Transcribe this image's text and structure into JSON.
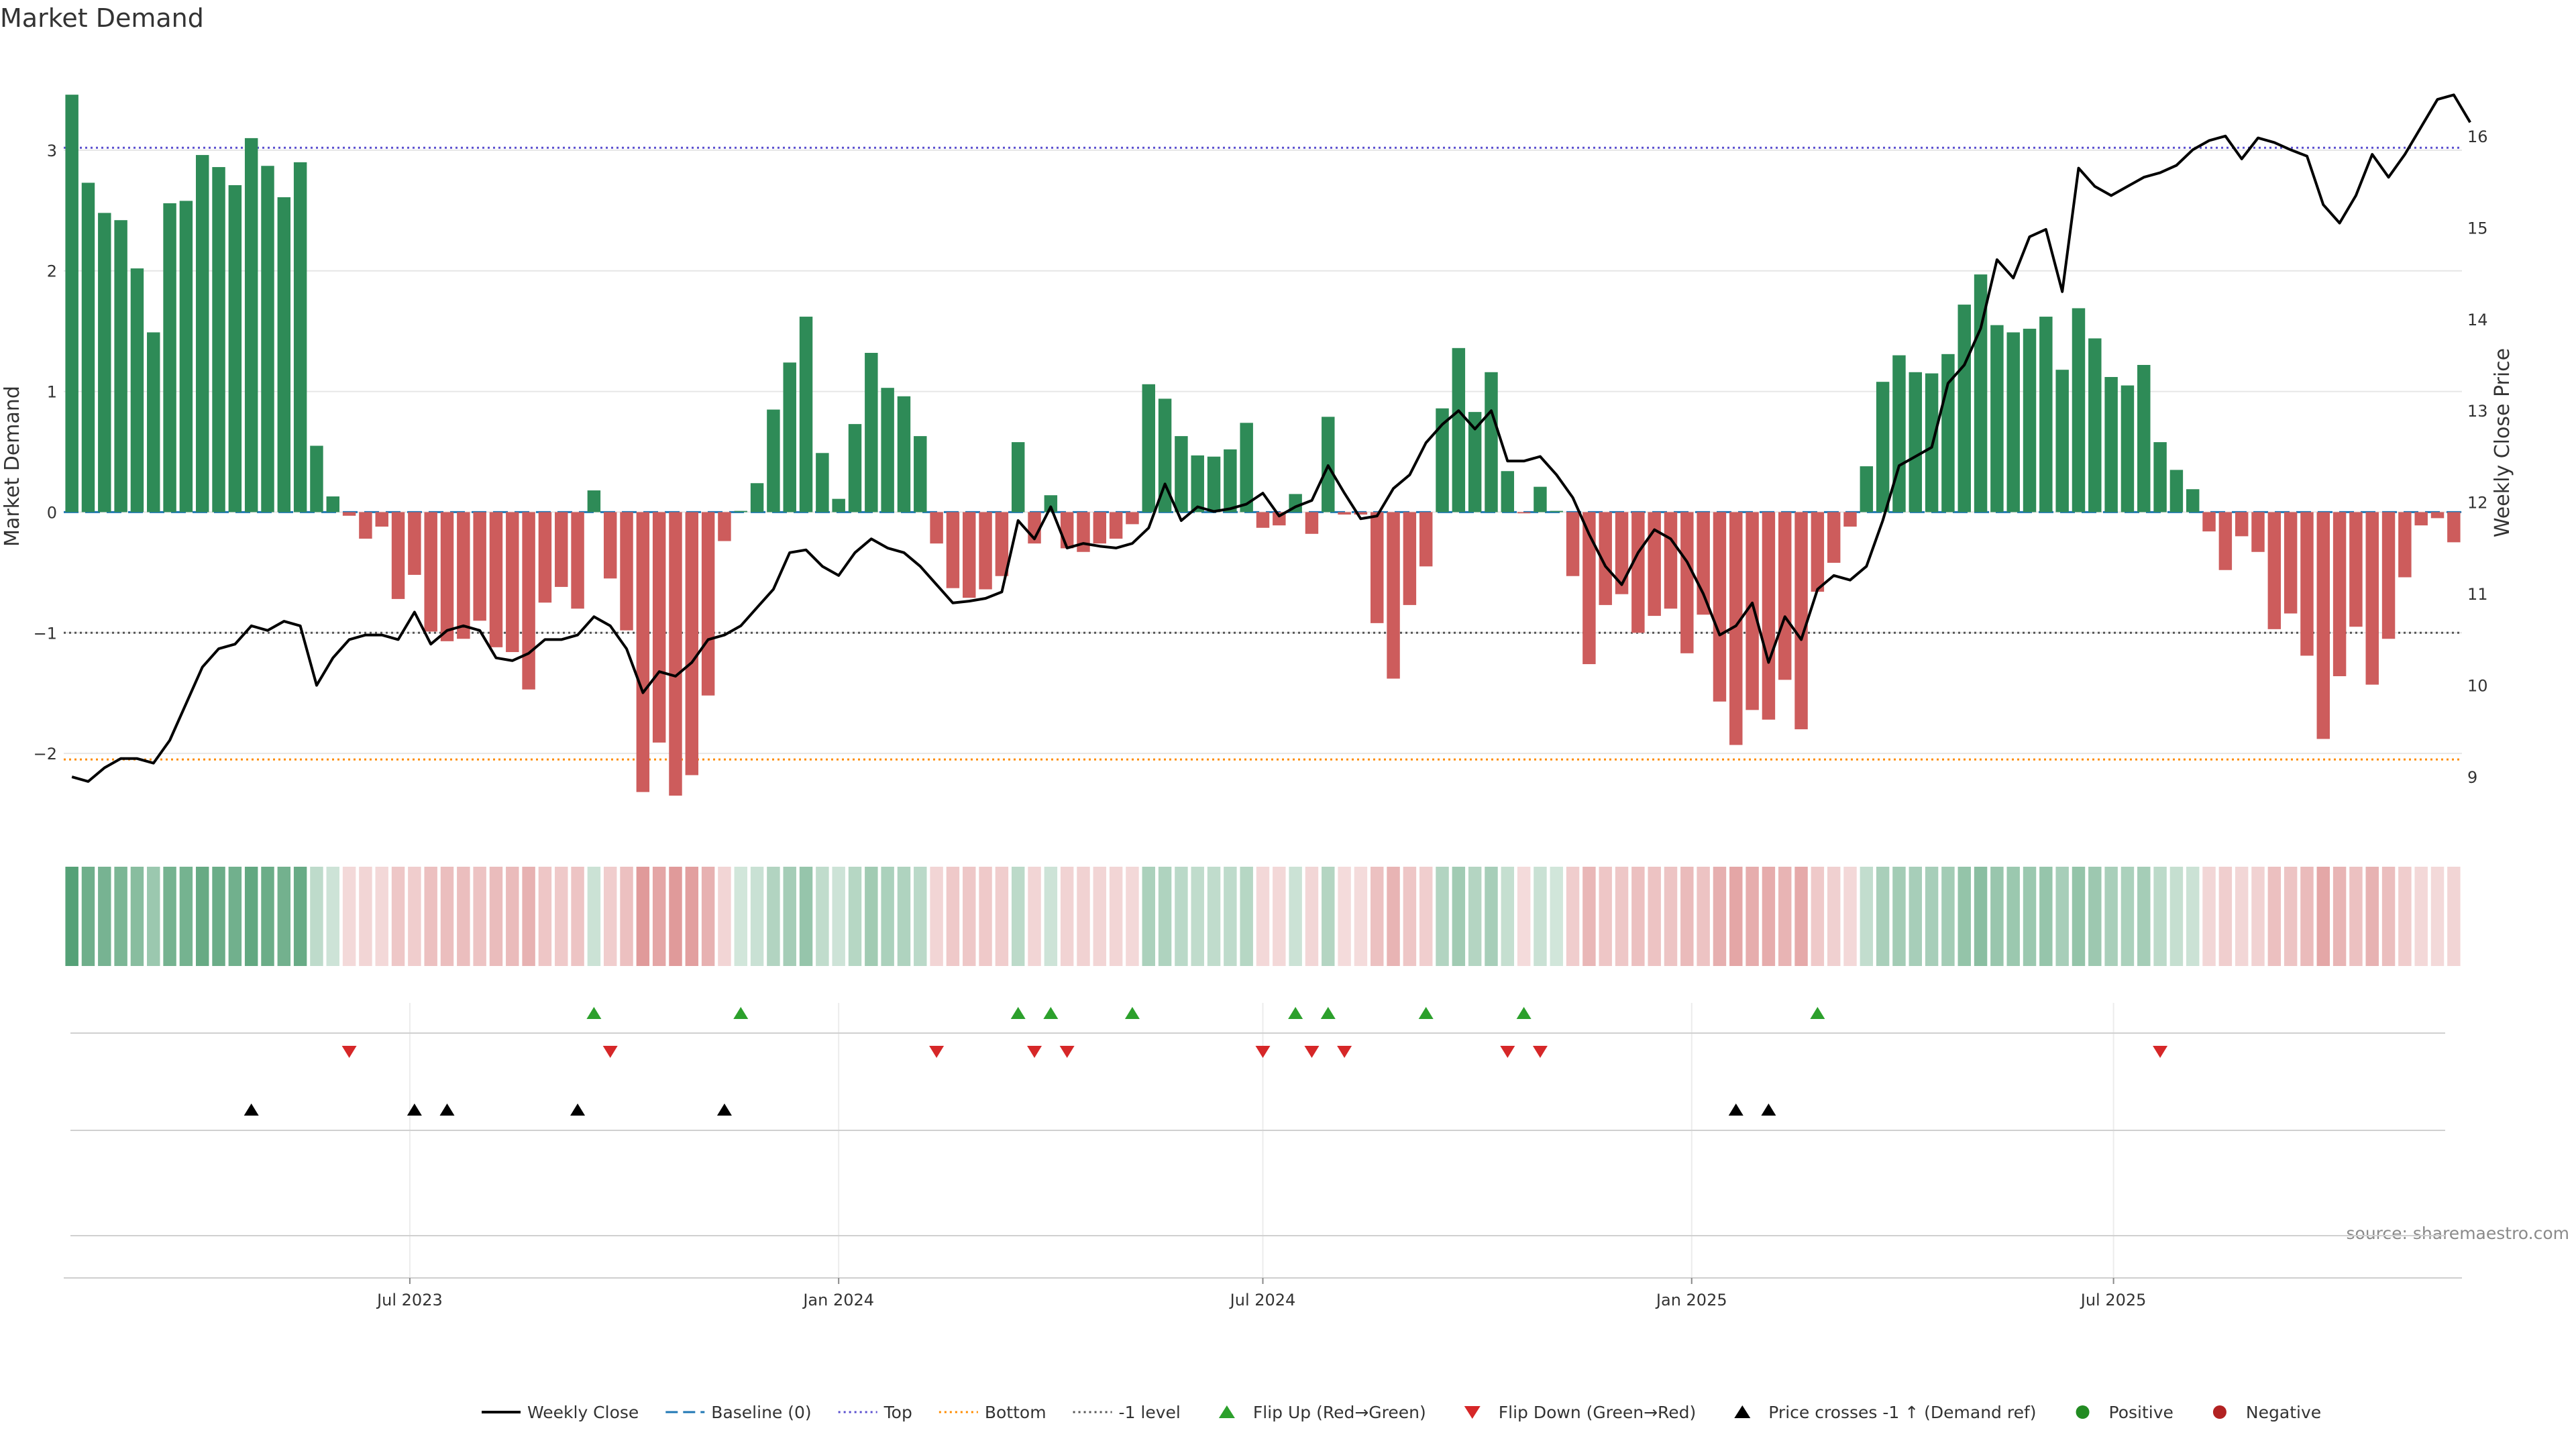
{
  "chart_data": {
    "type": "bar+line",
    "title": "Market Demand",
    "ylabel_left": "Market Demand",
    "ylabel_right": "Weekly Close Price",
    "source": "source: sharemaestro.com",
    "x_start": "2023-02-06",
    "x_interval_days": 7,
    "x_tick_labels": [
      {
        "label": "Jul 2023",
        "date": "2023-07-01"
      },
      {
        "label": "Jan 2024",
        "date": "2024-01-01"
      },
      {
        "label": "Jul 2024",
        "date": "2024-07-01"
      },
      {
        "label": "Jan 2025",
        "date": "2025-01-01"
      },
      {
        "label": "Jul 2025",
        "date": "2025-07-01"
      }
    ],
    "ylim_left": [
      -2.65,
      3.8
    ],
    "yticks_left": [
      -2,
      -1,
      0,
      1,
      2,
      3
    ],
    "ylim_right": [
      8.4,
      16.9
    ],
    "yticks_right": [
      9,
      10,
      11,
      12,
      13,
      14,
      15,
      16
    ],
    "reference_lines": {
      "top": 3.02,
      "bottom": -2.05,
      "minus_one": -1,
      "baseline": 0
    },
    "colors": {
      "positive": "#2e8b57",
      "negative": "#cd5c5c",
      "price": "#000000",
      "baseline": "#1f77b4",
      "top": "#5a4fcf",
      "bottom": "#ff8c00",
      "minus_one": "#555555",
      "flip_up": "#2ca02c",
      "flip_down": "#d62728",
      "cross": "#000000",
      "positive_dot": "#228b22",
      "negative_dot": "#b22222"
    },
    "demand": [
      3.46,
      2.73,
      2.48,
      2.42,
      2.02,
      1.49,
      2.56,
      2.58,
      2.96,
      2.86,
      2.71,
      3.1,
      2.87,
      2.61,
      2.9,
      0.55,
      0.13,
      -0.03,
      -0.22,
      -0.12,
      -0.72,
      -0.52,
      -0.99,
      -1.07,
      -1.05,
      -0.9,
      -1.12,
      -1.16,
      -1.47,
      -0.75,
      -0.62,
      -0.8,
      0.18,
      -0.55,
      -0.98,
      -2.32,
      -1.91,
      -2.35,
      -2.18,
      -1.52,
      -0.24,
      0.01,
      0.24,
      0.85,
      1.24,
      1.62,
      0.49,
      0.11,
      0.73,
      1.32,
      1.03,
      0.96,
      0.63,
      -0.26,
      -0.63,
      -0.71,
      -0.64,
      -0.53,
      0.58,
      -0.26,
      0.14,
      -0.3,
      -0.33,
      -0.26,
      -0.22,
      -0.1,
      1.06,
      0.94,
      0.63,
      0.47,
      0.46,
      0.52,
      0.74,
      -0.13,
      -0.11,
      0.15,
      -0.18,
      0.79,
      -0.02,
      -0.02,
      -0.92,
      -1.38,
      -0.77,
      -0.45,
      0.86,
      1.36,
      0.83,
      1.16,
      0.34,
      -0.01,
      0.21,
      0.01,
      -0.53,
      -1.26,
      -0.77,
      -0.68,
      -1.0,
      -0.86,
      -0.8,
      -1.17,
      -0.85,
      -1.57,
      -1.93,
      -1.64,
      -1.72,
      -1.39,
      -1.8,
      -0.66,
      -0.42,
      -0.12,
      0.38,
      1.08,
      1.3,
      1.16,
      1.15,
      1.31,
      1.72,
      1.97,
      1.55,
      1.49,
      1.52,
      1.62,
      1.18,
      1.69,
      1.44,
      1.12,
      1.05,
      1.22,
      0.58,
      0.35,
      0.19,
      -0.16,
      -0.48,
      -0.2,
      -0.33,
      -0.97,
      -0.84,
      -1.19,
      -1.88,
      -1.36,
      -0.95,
      -1.43,
      -1.05,
      -0.54,
      -0.11,
      -0.05,
      -0.25
    ],
    "price": [
      9.0,
      8.95,
      9.1,
      9.2,
      9.2,
      9.15,
      9.4,
      9.8,
      10.2,
      10.4,
      10.45,
      10.65,
      10.6,
      10.7,
      10.65,
      10.0,
      10.3,
      10.5,
      10.55,
      10.55,
      10.5,
      10.8,
      10.45,
      10.6,
      10.65,
      10.6,
      10.3,
      10.27,
      10.35,
      10.5,
      10.5,
      10.55,
      10.75,
      10.65,
      10.4,
      9.92,
      10.15,
      10.1,
      10.25,
      10.5,
      10.55,
      10.65,
      10.85,
      11.05,
      11.45,
      11.48,
      11.3,
      11.2,
      11.45,
      11.6,
      11.5,
      11.45,
      11.3,
      11.1,
      10.9,
      10.92,
      10.95,
      11.02,
      11.8,
      11.6,
      11.95,
      11.5,
      11.55,
      11.52,
      11.5,
      11.55,
      11.72,
      12.2,
      11.8,
      11.95,
      11.9,
      11.93,
      11.98,
      12.1,
      11.85,
      11.95,
      12.02,
      12.4,
      12.1,
      11.82,
      11.85,
      12.15,
      12.3,
      12.65,
      12.85,
      13.0,
      12.8,
      13.0,
      12.45,
      12.45,
      12.5,
      12.3,
      12.05,
      11.65,
      11.3,
      11.1,
      11.45,
      11.7,
      11.6,
      11.35,
      11.0,
      10.55,
      10.65,
      10.9,
      10.25,
      10.75,
      10.5,
      11.05,
      11.2,
      11.15,
      11.3,
      11.8,
      12.4,
      12.5,
      12.6,
      13.3,
      13.5,
      13.9,
      14.65,
      14.45,
      14.9,
      14.98,
      14.3,
      15.65,
      15.45,
      15.35,
      15.45,
      15.55,
      15.6,
      15.68,
      15.85,
      15.95,
      16.0,
      15.75,
      15.98,
      15.93,
      15.85,
      15.78,
      15.25,
      15.05,
      15.35,
      15.8,
      15.55,
      15.8,
      16.1,
      16.4,
      16.45,
      16.15
    ],
    "flip_up_indices": [
      32,
      41,
      58,
      60,
      65,
      75,
      77,
      83,
      89,
      107
    ],
    "flip_down_indices": [
      17,
      33,
      53,
      59,
      61,
      73,
      76,
      78,
      88,
      90,
      128
    ],
    "price_cross_indices": [
      11,
      21,
      23,
      31,
      40,
      102,
      104
    ],
    "legend": [
      {
        "label": "Weekly Close",
        "kind": "line"
      },
      {
        "label": "Baseline (0)",
        "kind": "dash"
      },
      {
        "label": "Top",
        "kind": "dot-top"
      },
      {
        "label": "Bottom",
        "kind": "dot-bottom"
      },
      {
        "label": "-1 level",
        "kind": "dot-minus"
      },
      {
        "label": "Flip Up (Red→Green)",
        "kind": "tri-up"
      },
      {
        "label": "Flip Down (Green→Red)",
        "kind": "tri-down"
      },
      {
        "label": "Price crosses -1 ↑ (Demand ref)",
        "kind": "tri-cross"
      },
      {
        "label": "Positive",
        "kind": "dot-pos"
      },
      {
        "label": "Negative",
        "kind": "dot-neg"
      }
    ]
  }
}
